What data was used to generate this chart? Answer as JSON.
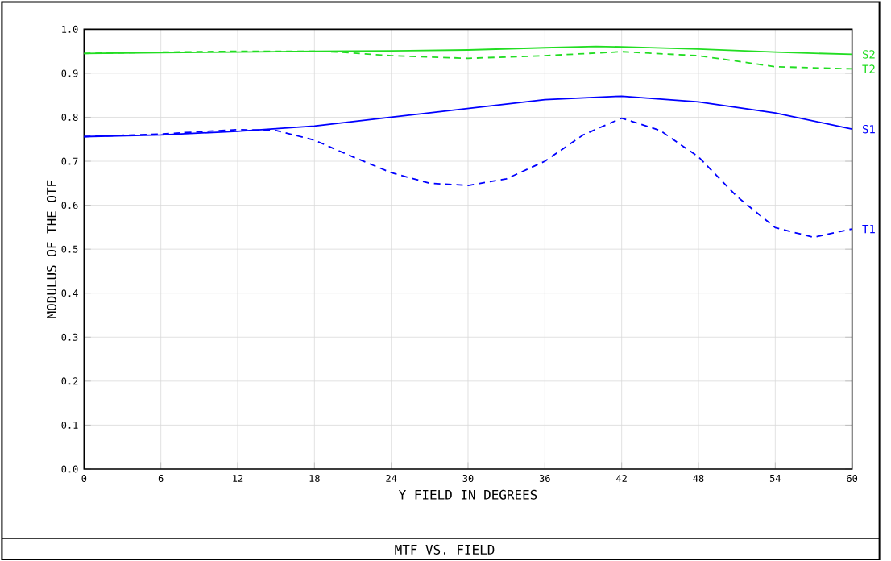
{
  "chart_data": {
    "type": "line",
    "title": "MTF VS. FIELD",
    "xlabel": "Y FIELD IN DEGREES",
    "ylabel": "MODULUS OF THE OTF",
    "xlim": [
      0,
      60
    ],
    "ylim": [
      0,
      1
    ],
    "xticks": [
      0,
      6,
      12,
      18,
      24,
      30,
      36,
      42,
      48,
      54,
      60
    ],
    "yticks": [
      {
        "value": 0,
        "label": "0.0"
      },
      {
        "value": 0.1,
        "label": "0.1"
      },
      {
        "value": 0.2,
        "label": "0.2"
      },
      {
        "value": 0.3,
        "label": "0.3"
      },
      {
        "value": 0.4,
        "label": "0.4"
      },
      {
        "value": 0.5,
        "label": "0.5"
      },
      {
        "value": 0.6,
        "label": "0.6"
      },
      {
        "value": 0.7,
        "label": "0.7"
      },
      {
        "value": 0.8,
        "label": "0.8"
      },
      {
        "value": 0.9,
        "label": "0.9"
      },
      {
        "value": 1,
        "label": "1.0"
      }
    ],
    "grid": true,
    "legend": false,
    "marker": "none",
    "series": [
      {
        "name": "S2",
        "color": "#22dd22",
        "line_style": "solid",
        "x": [
          0,
          6,
          12,
          18,
          24,
          30,
          36,
          40,
          42,
          48,
          54,
          60
        ],
        "values": [
          0.945,
          0.947,
          0.948,
          0.95,
          0.951,
          0.953,
          0.958,
          0.961,
          0.96,
          0.955,
          0.948,
          0.943
        ]
      },
      {
        "name": "T2",
        "color": "#22dd22",
        "line_style": "dashed",
        "x": [
          0,
          6,
          12,
          18,
          20,
          24,
          30,
          36,
          42,
          48,
          54,
          60
        ],
        "values": [
          0.945,
          0.948,
          0.95,
          0.95,
          0.948,
          0.94,
          0.934,
          0.94,
          0.949,
          0.94,
          0.915,
          0.91
        ]
      },
      {
        "name": "S1",
        "color": "#0000ff",
        "line_style": "solid",
        "x": [
          0,
          6,
          12,
          18,
          24,
          30,
          36,
          42,
          48,
          54,
          60
        ],
        "values": [
          0.756,
          0.76,
          0.768,
          0.78,
          0.8,
          0.82,
          0.84,
          0.848,
          0.835,
          0.81,
          0.773
        ]
      },
      {
        "name": "T1",
        "color": "#0000ff",
        "line_style": "dashed",
        "x": [
          0,
          6,
          12,
          15,
          18,
          21,
          24,
          27,
          30,
          33,
          36,
          39,
          42,
          45,
          48,
          51,
          54,
          57,
          60
        ],
        "values": [
          0.756,
          0.762,
          0.772,
          0.77,
          0.748,
          0.71,
          0.674,
          0.65,
          0.645,
          0.66,
          0.7,
          0.76,
          0.798,
          0.77,
          0.71,
          0.62,
          0.549,
          0.527,
          0.546
        ]
      }
    ]
  }
}
